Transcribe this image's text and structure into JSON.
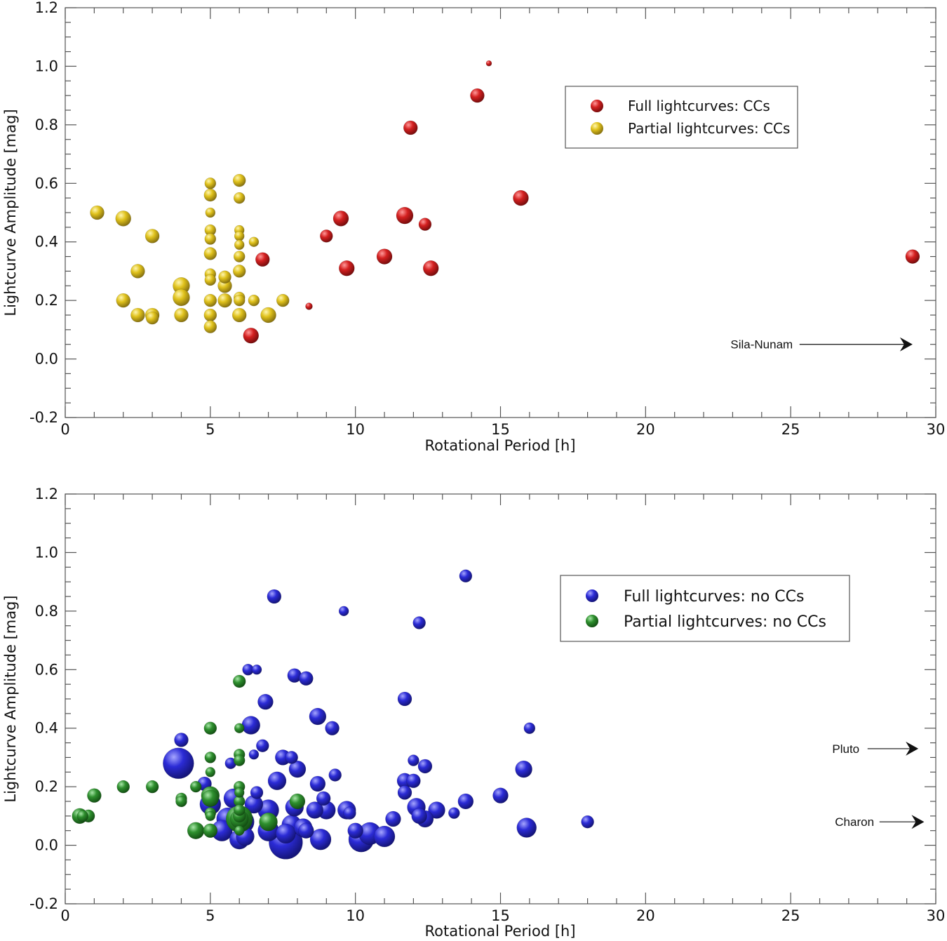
{
  "chart_data": [
    {
      "type": "scatter",
      "xlabel": "Rotational Period [h]",
      "ylabel": "Lightcurve Amplitude [mag]",
      "xlim": [
        0,
        30
      ],
      "ylim": [
        -0.2,
        1.2
      ],
      "xticks": [
        "0",
        "5",
        "10",
        "15",
        "20",
        "25",
        "30"
      ],
      "yticks": [
        "-0.2",
        "0.0",
        "0.2",
        "0.4",
        "0.6",
        "0.8",
        "1.0",
        "1.2"
      ],
      "legend_position": "top-right",
      "series": [
        {
          "name": "Full lightcurves: CCs",
          "color": "#d42020",
          "points": [
            {
              "x": 14.6,
              "y": 1.01,
              "s": 4
            },
            {
              "x": 14.2,
              "y": 0.9,
              "s": 10
            },
            {
              "x": 11.9,
              "y": 0.79,
              "s": 10
            },
            {
              "x": 15.7,
              "y": 0.55,
              "s": 11
            },
            {
              "x": 11.7,
              "y": 0.49,
              "s": 12
            },
            {
              "x": 9.5,
              "y": 0.48,
              "s": 11
            },
            {
              "x": 12.4,
              "y": 0.46,
              "s": 9
            },
            {
              "x": 9.0,
              "y": 0.42,
              "s": 9
            },
            {
              "x": 11.0,
              "y": 0.35,
              "s": 11
            },
            {
              "x": 6.8,
              "y": 0.34,
              "s": 10
            },
            {
              "x": 9.7,
              "y": 0.31,
              "s": 11
            },
            {
              "x": 12.6,
              "y": 0.31,
              "s": 11
            },
            {
              "x": 29.2,
              "y": 0.35,
              "s": 10
            },
            {
              "x": 8.4,
              "y": 0.18,
              "s": 5
            },
            {
              "x": 6.4,
              "y": 0.08,
              "s": 11
            }
          ]
        },
        {
          "name": "Partial lightcurves: CCs",
          "color": "#e0c21c",
          "points": [
            {
              "x": 1.1,
              "y": 0.5,
              "s": 10
            },
            {
              "x": 2.0,
              "y": 0.48,
              "s": 11
            },
            {
              "x": 3.0,
              "y": 0.42,
              "s": 10
            },
            {
              "x": 2.5,
              "y": 0.3,
              "s": 10
            },
            {
              "x": 2.0,
              "y": 0.2,
              "s": 10
            },
            {
              "x": 2.5,
              "y": 0.15,
              "s": 10
            },
            {
              "x": 3.0,
              "y": 0.15,
              "s": 10
            },
            {
              "x": 3.0,
              "y": 0.14,
              "s": 9
            },
            {
              "x": 4.0,
              "y": 0.25,
              "s": 12
            },
            {
              "x": 4.0,
              "y": 0.21,
              "s": 12
            },
            {
              "x": 4.0,
              "y": 0.15,
              "s": 10
            },
            {
              "x": 5.0,
              "y": 0.6,
              "s": 8
            },
            {
              "x": 5.0,
              "y": 0.56,
              "s": 9
            },
            {
              "x": 5.0,
              "y": 0.5,
              "s": 7
            },
            {
              "x": 5.0,
              "y": 0.44,
              "s": 8
            },
            {
              "x": 5.0,
              "y": 0.41,
              "s": 8
            },
            {
              "x": 5.0,
              "y": 0.36,
              "s": 9
            },
            {
              "x": 5.0,
              "y": 0.29,
              "s": 8
            },
            {
              "x": 5.0,
              "y": 0.27,
              "s": 8
            },
            {
              "x": 5.0,
              "y": 0.2,
              "s": 9
            },
            {
              "x": 5.0,
              "y": 0.15,
              "s": 9
            },
            {
              "x": 5.0,
              "y": 0.11,
              "s": 9
            },
            {
              "x": 5.5,
              "y": 0.28,
              "s": 9
            },
            {
              "x": 5.5,
              "y": 0.25,
              "s": 10
            },
            {
              "x": 5.5,
              "y": 0.2,
              "s": 10
            },
            {
              "x": 6.0,
              "y": 0.61,
              "s": 9
            },
            {
              "x": 6.0,
              "y": 0.55,
              "s": 8
            },
            {
              "x": 6.0,
              "y": 0.44,
              "s": 7
            },
            {
              "x": 6.0,
              "y": 0.42,
              "s": 7
            },
            {
              "x": 6.0,
              "y": 0.39,
              "s": 7
            },
            {
              "x": 6.0,
              "y": 0.35,
              "s": 8
            },
            {
              "x": 6.0,
              "y": 0.3,
              "s": 9
            },
            {
              "x": 6.0,
              "y": 0.21,
              "s": 8
            },
            {
              "x": 6.0,
              "y": 0.2,
              "s": 8
            },
            {
              "x": 6.0,
              "y": 0.15,
              "s": 10
            },
            {
              "x": 6.5,
              "y": 0.4,
              "s": 7
            },
            {
              "x": 6.5,
              "y": 0.2,
              "s": 8
            },
            {
              "x": 7.0,
              "y": 0.15,
              "s": 11
            },
            {
              "x": 7.5,
              "y": 0.2,
              "s": 9
            }
          ]
        }
      ],
      "annotations": [
        {
          "text": "Sila-Nunam",
          "x": 24.0,
          "y": 0.05,
          "arrow_to_x": 29.2,
          "arrow_to_y": 0.05
        }
      ]
    },
    {
      "type": "scatter",
      "xlabel": "Rotational Period [h]",
      "ylabel": "Lightcurve Amplitude [mag]",
      "xlim": [
        0,
        30
      ],
      "ylim": [
        -0.2,
        1.2
      ],
      "xticks": [
        "0",
        "5",
        "10",
        "15",
        "20",
        "25",
        "30"
      ],
      "yticks": [
        "-0.2",
        "0.0",
        "0.2",
        "0.4",
        "0.6",
        "0.8",
        "1.0",
        "1.2"
      ],
      "legend_position": "top-right",
      "series": [
        {
          "name": "Full lightcurves: no CCs",
          "color": "#2b2bd6",
          "points": [
            {
              "x": 13.8,
              "y": 0.92,
              "s": 9
            },
            {
              "x": 7.2,
              "y": 0.85,
              "s": 10
            },
            {
              "x": 9.6,
              "y": 0.8,
              "s": 7
            },
            {
              "x": 12.2,
              "y": 0.76,
              "s": 9
            },
            {
              "x": 6.3,
              "y": 0.6,
              "s": 8
            },
            {
              "x": 6.6,
              "y": 0.6,
              "s": 7
            },
            {
              "x": 7.9,
              "y": 0.58,
              "s": 10
            },
            {
              "x": 8.3,
              "y": 0.57,
              "s": 10
            },
            {
              "x": 11.7,
              "y": 0.5,
              "s": 10
            },
            {
              "x": 6.9,
              "y": 0.49,
              "s": 11
            },
            {
              "x": 8.7,
              "y": 0.44,
              "s": 12
            },
            {
              "x": 6.4,
              "y": 0.41,
              "s": 13
            },
            {
              "x": 9.2,
              "y": 0.4,
              "s": 10
            },
            {
              "x": 16.0,
              "y": 0.4,
              "s": 8
            },
            {
              "x": 4.0,
              "y": 0.36,
              "s": 10
            },
            {
              "x": 6.8,
              "y": 0.34,
              "s": 9
            },
            {
              "x": 6.5,
              "y": 0.31,
              "s": 7
            },
            {
              "x": 7.5,
              "y": 0.3,
              "s": 11
            },
            {
              "x": 7.8,
              "y": 0.3,
              "s": 9
            },
            {
              "x": 5.7,
              "y": 0.28,
              "s": 8
            },
            {
              "x": 3.9,
              "y": 0.28,
              "s": 22
            },
            {
              "x": 12.0,
              "y": 0.29,
              "s": 8
            },
            {
              "x": 12.4,
              "y": 0.27,
              "s": 10
            },
            {
              "x": 8.0,
              "y": 0.26,
              "s": 12
            },
            {
              "x": 15.8,
              "y": 0.26,
              "s": 12
            },
            {
              "x": 9.3,
              "y": 0.24,
              "s": 9
            },
            {
              "x": 7.3,
              "y": 0.22,
              "s": 13
            },
            {
              "x": 11.7,
              "y": 0.22,
              "s": 11
            },
            {
              "x": 12.0,
              "y": 0.22,
              "s": 10
            },
            {
              "x": 4.8,
              "y": 0.21,
              "s": 10
            },
            {
              "x": 8.7,
              "y": 0.21,
              "s": 11
            },
            {
              "x": 6.6,
              "y": 0.18,
              "s": 9
            },
            {
              "x": 11.7,
              "y": 0.18,
              "s": 10
            },
            {
              "x": 15.0,
              "y": 0.17,
              "s": 11
            },
            {
              "x": 5.8,
              "y": 0.16,
              "s": 14
            },
            {
              "x": 8.9,
              "y": 0.16,
              "s": 10
            },
            {
              "x": 13.8,
              "y": 0.15,
              "s": 11
            },
            {
              "x": 5.0,
              "y": 0.14,
              "s": 15
            },
            {
              "x": 6.5,
              "y": 0.14,
              "s": 13
            },
            {
              "x": 7.9,
              "y": 0.13,
              "s": 13
            },
            {
              "x": 12.1,
              "y": 0.13,
              "s": 13
            },
            {
              "x": 9.7,
              "y": 0.12,
              "s": 13
            },
            {
              "x": 9.0,
              "y": 0.12,
              "s": 13
            },
            {
              "x": 8.6,
              "y": 0.12,
              "s": 12
            },
            {
              "x": 7.0,
              "y": 0.12,
              "s": 15
            },
            {
              "x": 12.8,
              "y": 0.12,
              "s": 12
            },
            {
              "x": 13.4,
              "y": 0.11,
              "s": 8
            },
            {
              "x": 9.8,
              "y": 0.11,
              "s": 9
            },
            {
              "x": 12.2,
              "y": 0.1,
              "s": 11
            },
            {
              "x": 12.4,
              "y": 0.09,
              "s": 12
            },
            {
              "x": 11.3,
              "y": 0.09,
              "s": 11
            },
            {
              "x": 5.6,
              "y": 0.09,
              "s": 16
            },
            {
              "x": 6.1,
              "y": 0.08,
              "s": 17
            },
            {
              "x": 18.0,
              "y": 0.08,
              "s": 9
            },
            {
              "x": 7.8,
              "y": 0.07,
              "s": 14
            },
            {
              "x": 8.2,
              "y": 0.06,
              "s": 13
            },
            {
              "x": 15.9,
              "y": 0.06,
              "s": 14
            },
            {
              "x": 5.4,
              "y": 0.05,
              "s": 15
            },
            {
              "x": 7.0,
              "y": 0.05,
              "s": 15
            },
            {
              "x": 8.3,
              "y": 0.05,
              "s": 11
            },
            {
              "x": 10.0,
              "y": 0.05,
              "s": 11
            },
            {
              "x": 10.5,
              "y": 0.04,
              "s": 16
            },
            {
              "x": 7.6,
              "y": 0.04,
              "s": 14
            },
            {
              "x": 11.0,
              "y": 0.03,
              "s": 15
            },
            {
              "x": 6.2,
              "y": 0.03,
              "s": 13
            },
            {
              "x": 8.8,
              "y": 0.02,
              "s": 15
            },
            {
              "x": 10.2,
              "y": 0.02,
              "s": 18
            },
            {
              "x": 6.0,
              "y": 0.02,
              "s": 14
            },
            {
              "x": 7.6,
              "y": 0.01,
              "s": 24
            }
          ]
        },
        {
          "name": "Partial lightcurves: no CCs",
          "color": "#2e8f2e",
          "points": [
            {
              "x": 6.0,
              "y": 0.56,
              "s": 9
            },
            {
              "x": 5.0,
              "y": 0.4,
              "s": 9
            },
            {
              "x": 6.0,
              "y": 0.4,
              "s": 7
            },
            {
              "x": 5.0,
              "y": 0.3,
              "s": 8
            },
            {
              "x": 6.0,
              "y": 0.31,
              "s": 8
            },
            {
              "x": 6.0,
              "y": 0.29,
              "s": 8
            },
            {
              "x": 5.0,
              "y": 0.25,
              "s": 7
            },
            {
              "x": 2.0,
              "y": 0.2,
              "s": 9
            },
            {
              "x": 3.0,
              "y": 0.2,
              "s": 9
            },
            {
              "x": 4.5,
              "y": 0.2,
              "s": 8
            },
            {
              "x": 6.0,
              "y": 0.2,
              "s": 8
            },
            {
              "x": 6.0,
              "y": 0.18,
              "s": 7
            },
            {
              "x": 1.0,
              "y": 0.17,
              "s": 10
            },
            {
              "x": 5.0,
              "y": 0.17,
              "s": 13
            },
            {
              "x": 4.0,
              "y": 0.16,
              "s": 8
            },
            {
              "x": 5.0,
              "y": 0.16,
              "s": 12
            },
            {
              "x": 6.0,
              "y": 0.15,
              "s": 8
            },
            {
              "x": 8.0,
              "y": 0.15,
              "s": 11
            },
            {
              "x": 4.0,
              "y": 0.15,
              "s": 8
            },
            {
              "x": 6.0,
              "y": 0.12,
              "s": 8
            },
            {
              "x": 5.0,
              "y": 0.11,
              "s": 8
            },
            {
              "x": 0.5,
              "y": 0.1,
              "s": 11
            },
            {
              "x": 0.8,
              "y": 0.1,
              "s": 9
            },
            {
              "x": 0.6,
              "y": 0.1,
              "s": 8
            },
            {
              "x": 5.0,
              "y": 0.1,
              "s": 7
            },
            {
              "x": 6.0,
              "y": 0.1,
              "s": 9
            },
            {
              "x": 6.0,
              "y": 0.09,
              "s": 19
            },
            {
              "x": 6.0,
              "y": 0.09,
              "s": 13
            },
            {
              "x": 7.0,
              "y": 0.08,
              "s": 13
            },
            {
              "x": 4.5,
              "y": 0.05,
              "s": 12
            },
            {
              "x": 5.0,
              "y": 0.05,
              "s": 10
            },
            {
              "x": 6.0,
              "y": 0.05,
              "s": 7
            }
          ]
        }
      ],
      "annotations": [
        {
          "text": "Pluto",
          "x": 26.9,
          "y": 0.33,
          "arrow_to_x": 29.4,
          "arrow_to_y": 0.33
        },
        {
          "text": "Charon",
          "x": 27.2,
          "y": 0.08,
          "arrow_to_x": 29.6,
          "arrow_to_y": 0.08
        }
      ]
    }
  ]
}
